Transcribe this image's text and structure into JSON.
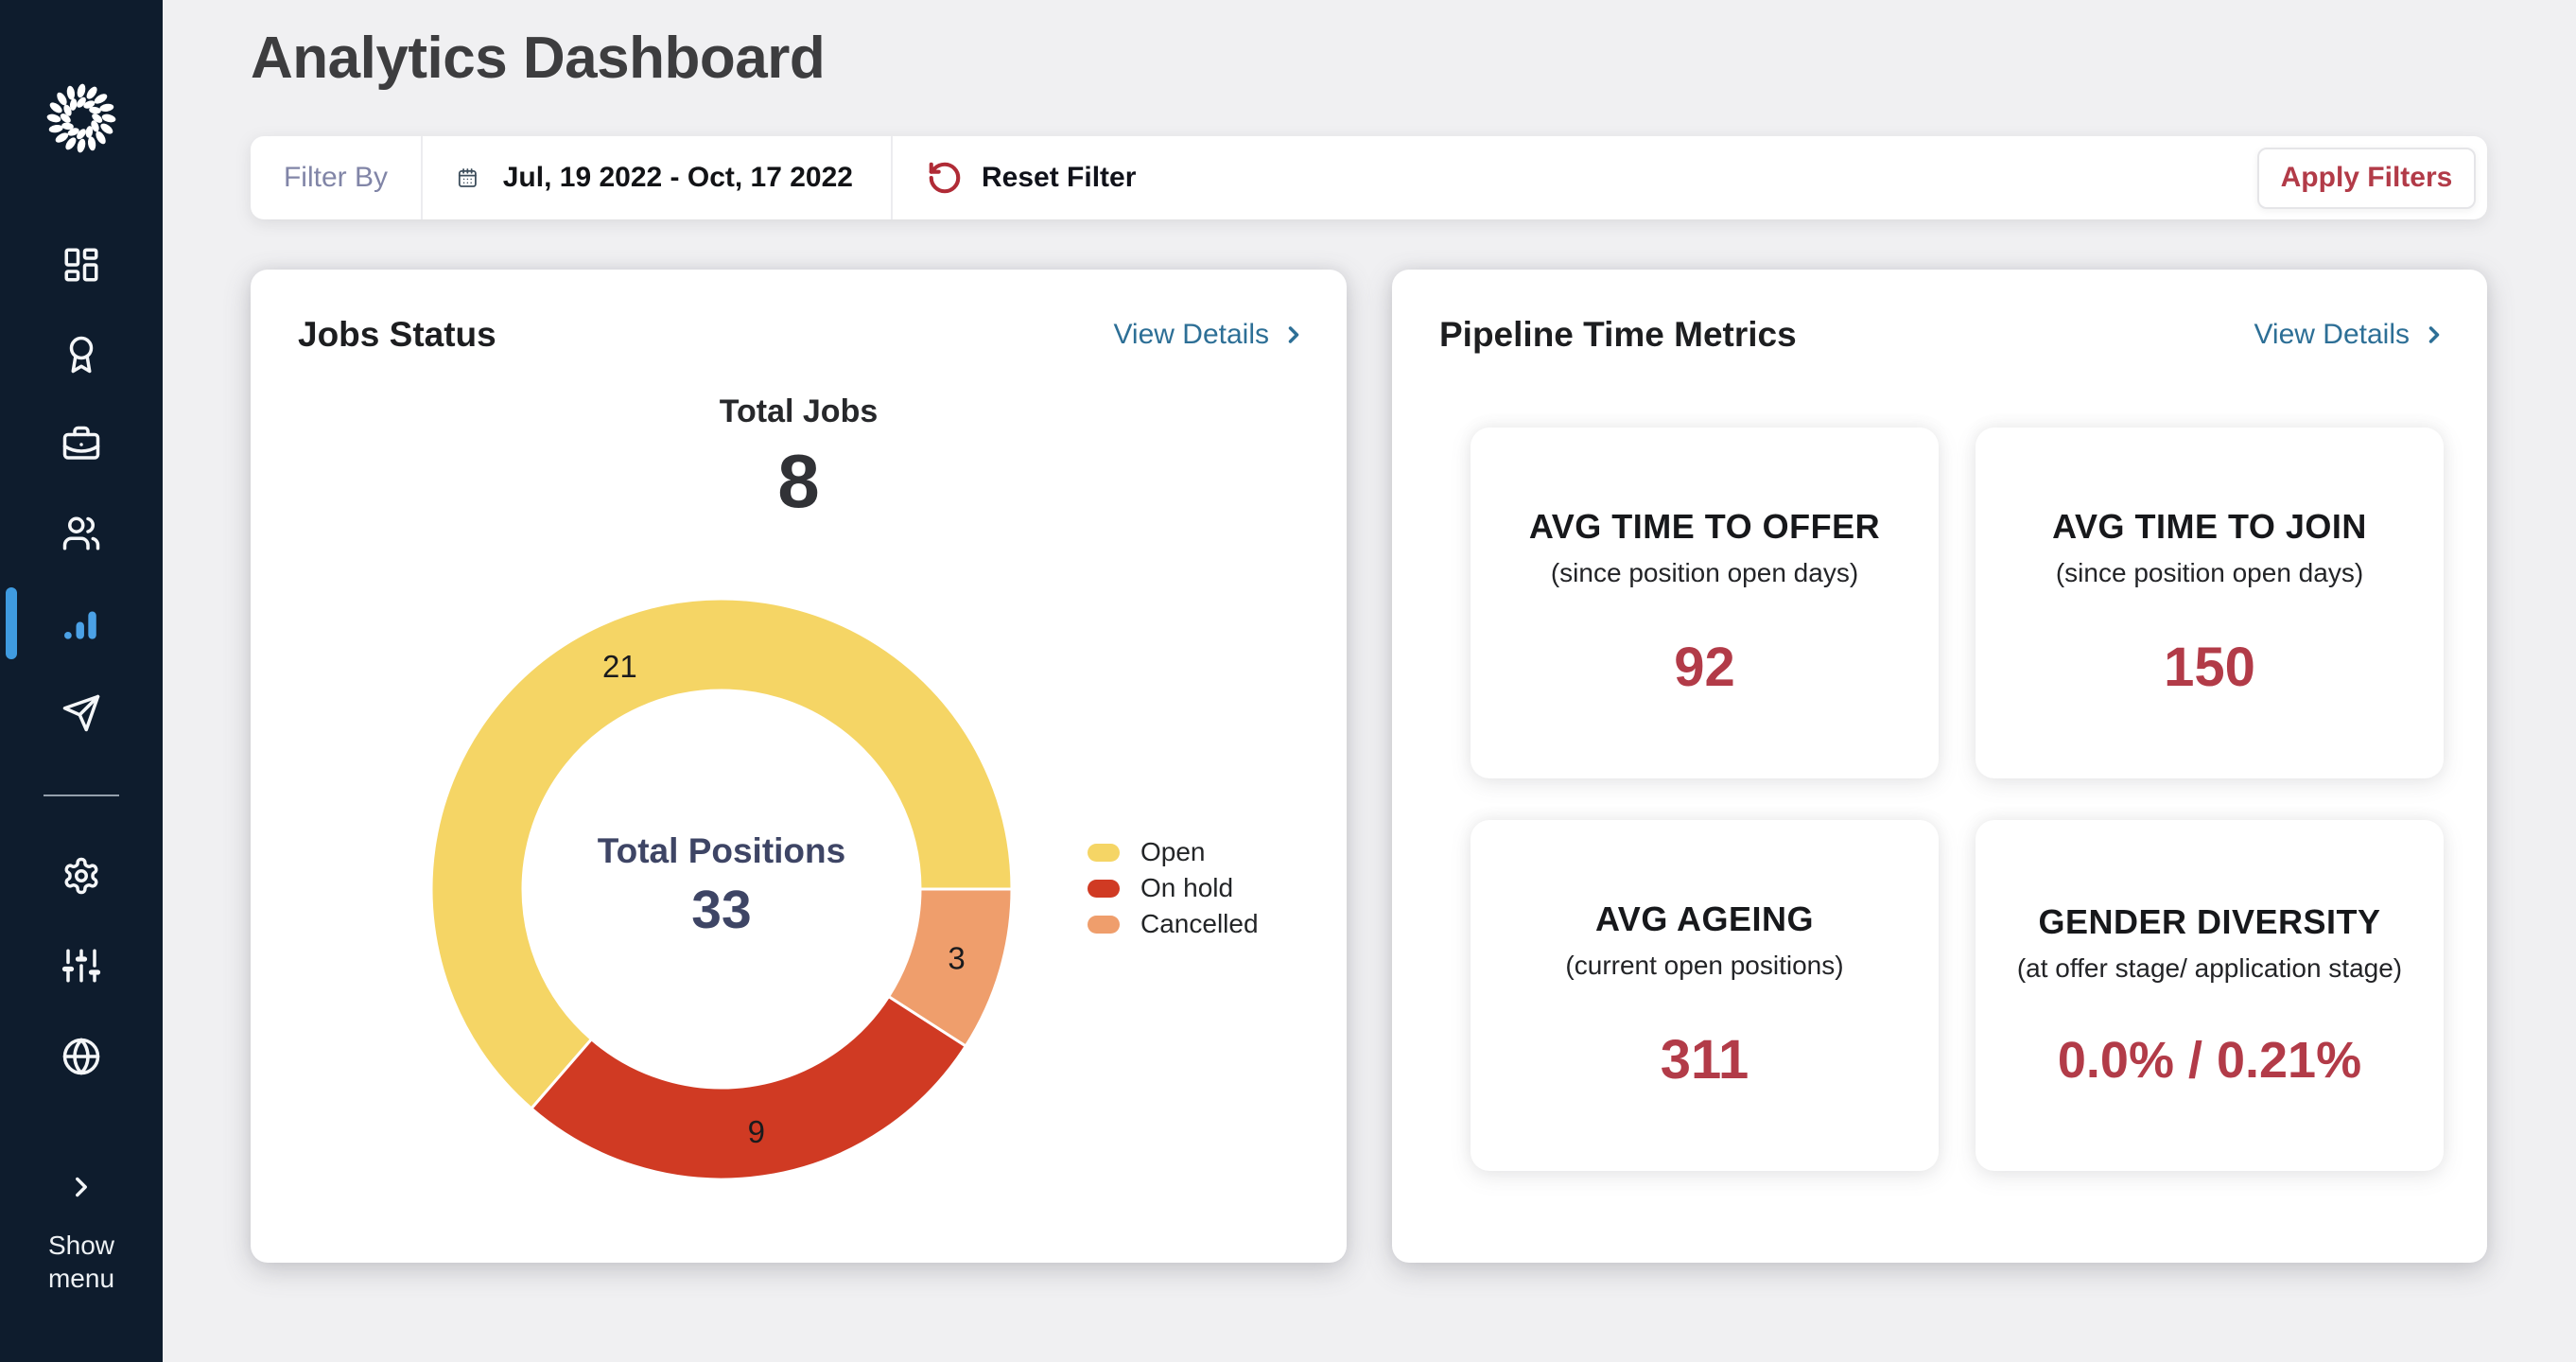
{
  "app": {
    "title": "Analytics Dashboard"
  },
  "sidebar": {
    "show_menu_label": "Show menu",
    "active_item": "analytics",
    "items": [
      {
        "name": "dashboard"
      },
      {
        "name": "awards"
      },
      {
        "name": "jobs"
      },
      {
        "name": "candidates"
      },
      {
        "name": "analytics"
      },
      {
        "name": "campaigns"
      },
      {
        "name": "settings"
      },
      {
        "name": "preferences"
      },
      {
        "name": "language"
      }
    ]
  },
  "filter_bar": {
    "filter_by_label": "Filter By",
    "date_range": "Jul, 19 2022 - Oct, 17 2022",
    "reset_label": "Reset Filter",
    "apply_label": "Apply Filters"
  },
  "jobs_status": {
    "title": "Jobs Status",
    "view_details_label": "View Details",
    "total_jobs_label": "Total Jobs",
    "total_jobs_value": "8",
    "center_label": "Total Positions",
    "center_value": "33"
  },
  "chart_data": {
    "type": "pie",
    "subtype": "donut",
    "title": "Jobs Status",
    "total_jobs": 8,
    "total_positions": 33,
    "center_label": "Total Positions",
    "center_value": 33,
    "legend_position": "right",
    "segments": [
      {
        "label": "Open",
        "value": 21,
        "color": "#F5D565"
      },
      {
        "label": "On hold",
        "value": 9,
        "color": "#D03A23"
      },
      {
        "label": "Cancelled",
        "value": 3,
        "color": "#EF9E6C"
      }
    ]
  },
  "pipeline": {
    "title": "Pipeline Time Metrics",
    "view_details_label": "View Details",
    "metrics": [
      {
        "title": "AVG TIME TO OFFER",
        "subtitle": "(since position open days)",
        "value": "92"
      },
      {
        "title": "AVG TIME TO JOIN",
        "subtitle": "(since position open days)",
        "value": "150"
      },
      {
        "title": "AVG AGEING",
        "subtitle": "(current open positions)",
        "value": "311"
      },
      {
        "title": "GENDER DIVERSITY",
        "subtitle": "(at offer stage/ application stage)",
        "value": "0.0% / 0.21%"
      }
    ]
  },
  "colors": {
    "sidebar_bg": "#0E1C2D",
    "accent_blue": "#4BA1E6",
    "link_blue": "#2D6F96",
    "crimson": "#B23B48",
    "page_bg": "#F0F0F2",
    "donut_open": "#F5D565",
    "donut_on_hold": "#D03A23",
    "donut_cancelled": "#EF9E6C"
  }
}
